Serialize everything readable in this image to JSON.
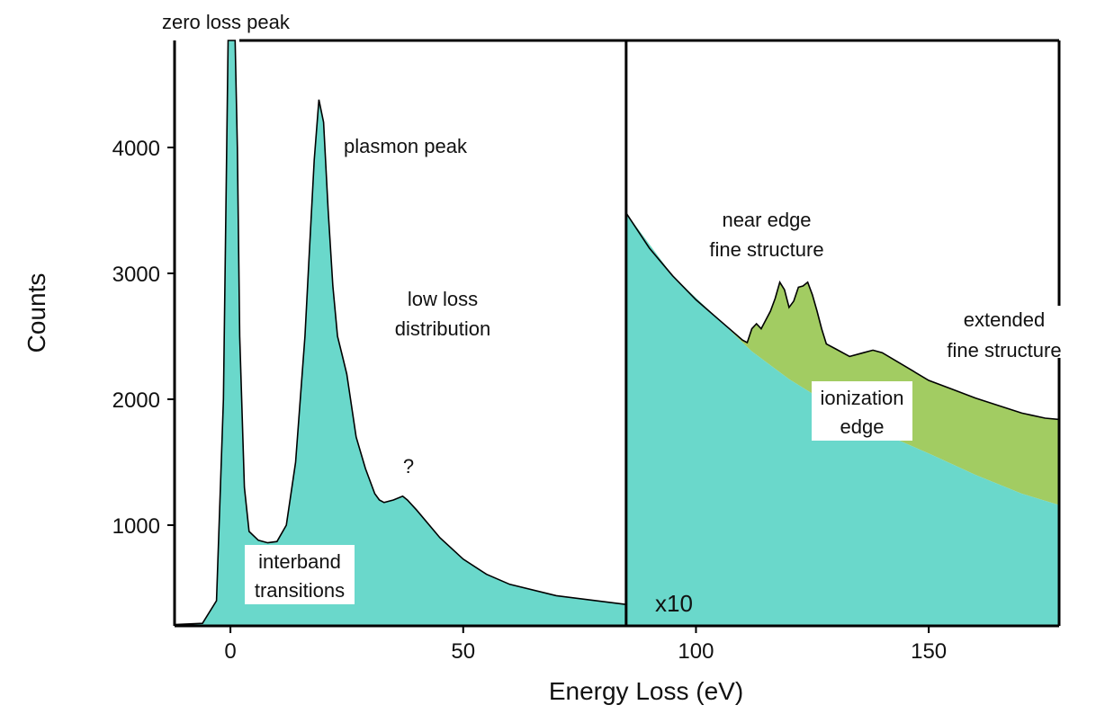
{
  "chart_data": {
    "type": "area",
    "title": "",
    "xlabel": "Energy Loss (eV)",
    "ylabel": "Counts",
    "xlim": [
      -12,
      178
    ],
    "ylim": [
      200,
      4850
    ],
    "x_ticks": [
      0,
      50,
      100,
      150
    ],
    "y_ticks": [
      1000,
      2000,
      3000,
      4000
    ],
    "split_x": 85,
    "split_scale_label": "x10",
    "colors": {
      "background": "#6ad8cb",
      "edge": "#a2cc62",
      "line": "#000000"
    },
    "series": [
      {
        "name": "",
        "x": [
          -12,
          -6,
          -3,
          -1.5,
          -0.5,
          0,
          0.5,
          1,
          1.5,
          2,
          3,
          4,
          6,
          8,
          10,
          12,
          14,
          16,
          17,
          18,
          19,
          20,
          21,
          22,
          23,
          24,
          25,
          27,
          29,
          30,
          31,
          32,
          33,
          35,
          37,
          38,
          40,
          45,
          50,
          55,
          60,
          70,
          85
        ],
        "y": [
          210,
          220,
          400,
          2000,
          4850,
          4850,
          4850,
          4850,
          4000,
          2500,
          1300,
          950,
          880,
          860,
          870,
          1000,
          1500,
          2500,
          3200,
          3900,
          4380,
          4200,
          3500,
          2900,
          2500,
          2350,
          2200,
          1700,
          1450,
          1350,
          1250,
          1200,
          1180,
          1200,
          1230,
          1200,
          1120,
          900,
          730,
          610,
          530,
          440,
          370
        ]
      },
      {
        "name": "",
        "x": [
          85,
          90,
          95,
          100,
          105,
          110,
          111,
          112,
          113,
          114,
          116,
          117,
          118,
          119,
          120,
          121,
          122,
          123,
          124,
          125,
          126,
          127,
          128,
          130,
          133,
          136,
          138,
          140,
          145,
          150,
          155,
          160,
          165,
          170,
          175,
          178
        ],
        "y": [
          3480,
          3200,
          2980,
          2790,
          2630,
          2470,
          2450,
          2560,
          2600,
          2560,
          2700,
          2800,
          2930,
          2870,
          2730,
          2780,
          2890,
          2900,
          2930,
          2830,
          2700,
          2560,
          2440,
          2400,
          2340,
          2370,
          2390,
          2370,
          2260,
          2150,
          2080,
          2010,
          1950,
          1890,
          1850,
          1840
        ]
      },
      {
        "name": "",
        "x": [
          85,
          95,
          105,
          110,
          112,
          120,
          130,
          140,
          150,
          160,
          170,
          178
        ],
        "y": [
          3480,
          2980,
          2630,
          2450,
          2380,
          2160,
          1930,
          1730,
          1570,
          1400,
          1250,
          1160
        ]
      }
    ],
    "annotations": [
      {
        "text": "zero loss peak"
      },
      {
        "text": "plasmon peak"
      },
      {
        "text": "low loss"
      },
      {
        "text": "distribution"
      },
      {
        "text": "?"
      },
      {
        "text": "interband"
      },
      {
        "text": "transitions"
      },
      {
        "text": "near edge"
      },
      {
        "text": "fine structure"
      },
      {
        "text": "extended"
      },
      {
        "text": "fine structure"
      },
      {
        "text": "ionization"
      },
      {
        "text": "edge"
      }
    ]
  }
}
